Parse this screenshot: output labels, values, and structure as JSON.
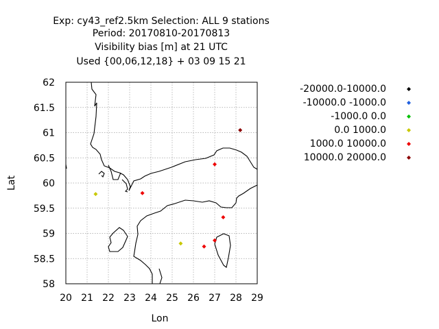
{
  "chart_data": {
    "type": "scatter",
    "title_lines": [
      "Exp: cy43_ref2.5km   Selection: ALL      9 stations",
      "Period: 20170810-20170813",
      "Visibility bias [m] at  21 UTC",
      "Used {00,06,12,18} + 03 09 15 21"
    ],
    "xlabel": "Lon",
    "ylabel": "Lat",
    "xlim": [
      20,
      29
    ],
    "ylim": [
      58,
      62
    ],
    "xticks": [
      "20",
      "21",
      "22",
      "23",
      "24",
      "25",
      "26",
      "27",
      "28",
      "29"
    ],
    "yticks": [
      "58",
      "58.5",
      "59",
      "59.5",
      "60",
      "60.5",
      "61",
      "61.5",
      "62"
    ],
    "grid": true,
    "legend_position": "right",
    "series": [
      {
        "name": "-20000.0-10000.0",
        "color": "#000000",
        "points": []
      },
      {
        "name": "-10000.0 -1000.0",
        "color": "#2060e0",
        "points": []
      },
      {
        "name": "-1000.0 0.0",
        "color": "#00c000",
        "points": []
      },
      {
        "name": "0.0 1000.0",
        "color": "#c8c800",
        "points": [
          [
            21.4,
            59.78
          ],
          [
            25.4,
            58.8
          ]
        ]
      },
      {
        "name": "1000.0 10000.0",
        "color": "#ee0000",
        "points": [
          [
            23.6,
            59.8
          ],
          [
            27.0,
            60.37
          ],
          [
            27.4,
            59.32
          ],
          [
            26.5,
            58.74
          ],
          [
            27.0,
            58.86
          ]
        ]
      },
      {
        "name": "10000.0 20000.0",
        "color": "#8b0000",
        "points": [
          [
            28.2,
            61.05
          ]
        ]
      }
    ]
  }
}
